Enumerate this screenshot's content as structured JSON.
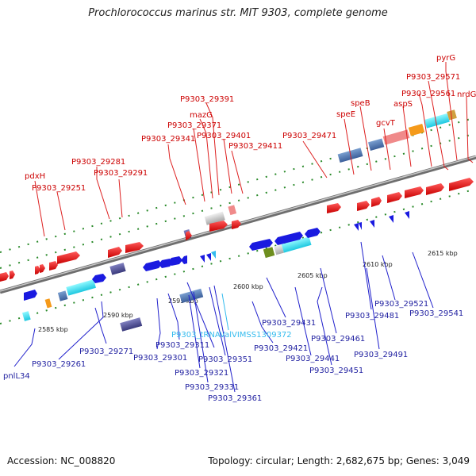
{
  "title": "Prochlorococcus marinus str. MIT 9303, complete genome",
  "footer": {
    "accession": "Accession: NC_008820",
    "summary": "Topology: circular; Length: 2,682,675 bp; Genes: 3,049"
  },
  "colors": {
    "forward_gene": "#e31a1c",
    "forward_label": "#cc0000",
    "reverse_gene": "#1a1ae0",
    "reverse_label": "#1f1fa0",
    "trna": "#33bbee",
    "axis": "#8a8a8a",
    "tick_marks": "#2a8a2a"
  },
  "scale": {
    "unit": "kbp",
    "ticks": [
      "2585 kbp",
      "2590 kbp",
      "2595 kbp",
      "2600 kbp",
      "2605 kbp",
      "2610 kbp",
      "2615 kbp"
    ]
  },
  "forward_labels": [
    "pyrG",
    "P9303_29571",
    "nrdG",
    "P9303_29561",
    "aspS",
    "P9303_29391",
    "speB",
    "gcvT",
    "speE",
    "mazG",
    "P9303_29371",
    "P9303_29401",
    "P9303_29341",
    "P9303_29471",
    "P9303_29411",
    "pdxH",
    "P9303_29281",
    "P9303_29291",
    "P9303_29251"
  ],
  "reverse_labels": [
    "P9303_29541",
    "P9303_29521",
    "P9303_29481",
    "P9303_29431",
    "P9303_tRNAValVIMSS1309372",
    "P9303_29311",
    "P9303_29421",
    "P9303_29461",
    "P9303_29491",
    "P9303_29301",
    "P9303_29441",
    "P9303_29271",
    "P9303_29261",
    "P9303_29351",
    "P9303_29451",
    "P9303_29321",
    "pnlL34",
    "P9303_29331",
    "P9303_29361"
  ]
}
